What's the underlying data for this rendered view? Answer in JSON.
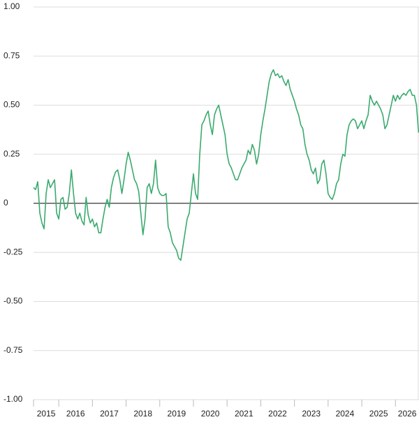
{
  "chart_data": {
    "type": "line",
    "x": [
      2015.25,
      2015.3125,
      2015.375,
      2015.4375,
      2015.5,
      2015.5625,
      2015.625,
      2015.6875,
      2015.75,
      2015.8125,
      2015.875,
      2015.9375,
      2016.0,
      2016.0625,
      2016.125,
      2016.1875,
      2016.25,
      2016.3125,
      2016.375,
      2016.4375,
      2016.5,
      2016.5625,
      2016.625,
      2016.6875,
      2016.75,
      2016.8125,
      2016.875,
      2016.9375,
      2017.0,
      2017.0625,
      2017.125,
      2017.1875,
      2017.25,
      2017.3125,
      2017.375,
      2017.4375,
      2017.5,
      2017.5625,
      2017.625,
      2017.6875,
      2017.75,
      2017.8125,
      2017.875,
      2017.9375,
      2018.0,
      2018.0625,
      2018.125,
      2018.1875,
      2018.25,
      2018.3125,
      2018.375,
      2018.4375,
      2018.5,
      2018.5625,
      2018.625,
      2018.6875,
      2018.75,
      2018.8125,
      2018.875,
      2018.9375,
      2019.0,
      2019.0625,
      2019.125,
      2019.1875,
      2019.25,
      2019.3125,
      2019.375,
      2019.4375,
      2019.5,
      2019.5625,
      2019.625,
      2019.6875,
      2019.75,
      2019.8125,
      2019.875,
      2019.9375,
      2020.0,
      2020.0625,
      2020.125,
      2020.1875,
      2020.25,
      2020.3125,
      2020.375,
      2020.4375,
      2020.5,
      2020.5625,
      2020.625,
      2020.6875,
      2020.75,
      2020.8125,
      2020.875,
      2020.9375,
      2021.0,
      2021.0625,
      2021.125,
      2021.1875,
      2021.25,
      2021.3125,
      2021.375,
      2021.4375,
      2021.5,
      2021.5625,
      2021.625,
      2021.6875,
      2021.75,
      2021.8125,
      2021.875,
      2021.9375,
      2022.0,
      2022.0625,
      2022.125,
      2022.1875,
      2022.25,
      2022.3125,
      2022.375,
      2022.4375,
      2022.5,
      2022.5625,
      2022.625,
      2022.6875,
      2022.75,
      2022.8125,
      2022.875,
      2022.9375,
      2023.0,
      2023.0625,
      2023.125,
      2023.1875,
      2023.25,
      2023.3125,
      2023.375,
      2023.4375,
      2023.5,
      2023.5625,
      2023.625,
      2023.6875,
      2023.75,
      2023.8125,
      2023.875,
      2023.9375,
      2024.0,
      2024.0625,
      2024.125,
      2024.1875,
      2024.25,
      2024.3125,
      2024.375,
      2024.4375,
      2024.5,
      2024.5625,
      2024.625,
      2024.6875,
      2024.75,
      2024.8125,
      2024.875,
      2024.9375,
      2025.0,
      2025.0625,
      2025.125,
      2025.1875,
      2025.25,
      2025.3125,
      2025.375,
      2025.4375,
      2025.5,
      2025.5625,
      2025.625,
      2025.6875,
      2025.75,
      2025.8125,
      2025.875,
      2025.9375,
      2026.0,
      2026.0625,
      2026.125,
      2026.1875,
      2026.25,
      2026.3125,
      2026.375,
      2026.4375,
      2026.5,
      2026.5625,
      2026.625,
      2026.6875
    ],
    "series": [
      {
        "color": "#3aaa6e",
        "values": [
          0.08,
          0.07,
          0.11,
          -0.05,
          -0.1,
          -0.13,
          0.05,
          0.12,
          0.08,
          0.1,
          0.12,
          -0.05,
          -0.08,
          0.02,
          0.03,
          -0.03,
          -0.02,
          0.05,
          0.17,
          0.05,
          -0.05,
          -0.08,
          -0.05,
          -0.09,
          -0.11,
          0.03,
          -0.06,
          -0.1,
          -0.08,
          -0.12,
          -0.1,
          -0.15,
          -0.15,
          -0.08,
          -0.02,
          0.02,
          -0.02,
          0.08,
          0.13,
          0.16,
          0.17,
          0.12,
          0.05,
          0.12,
          0.2,
          0.26,
          0.22,
          0.17,
          0.12,
          0.1,
          0.06,
          -0.05,
          -0.16,
          -0.08,
          0.08,
          0.1,
          0.05,
          0.1,
          0.22,
          0.08,
          0.05,
          0.04,
          0.04,
          0.05,
          -0.12,
          -0.15,
          -0.2,
          -0.22,
          -0.24,
          -0.28,
          -0.29,
          -0.22,
          -0.15,
          -0.08,
          -0.05,
          0.05,
          0.15,
          0.05,
          0.02,
          0.25,
          0.4,
          0.42,
          0.45,
          0.47,
          0.4,
          0.35,
          0.45,
          0.48,
          0.5,
          0.45,
          0.4,
          0.35,
          0.25,
          0.2,
          0.18,
          0.15,
          0.12,
          0.12,
          0.15,
          0.18,
          0.2,
          0.22,
          0.27,
          0.25,
          0.3,
          0.27,
          0.2,
          0.25,
          0.35,
          0.42,
          0.48,
          0.55,
          0.62,
          0.66,
          0.68,
          0.65,
          0.66,
          0.64,
          0.65,
          0.62,
          0.6,
          0.63,
          0.58,
          0.55,
          0.52,
          0.48,
          0.45,
          0.4,
          0.38,
          0.3,
          0.25,
          0.22,
          0.17,
          0.15,
          0.18,
          0.1,
          0.12,
          0.2,
          0.22,
          0.15,
          0.05,
          0.03,
          0.02,
          0.05,
          0.1,
          0.12,
          0.2,
          0.25,
          0.24,
          0.35,
          0.4,
          0.42,
          0.43,
          0.42,
          0.38,
          0.4,
          0.42,
          0.38,
          0.42,
          0.45,
          0.55,
          0.52,
          0.5,
          0.52,
          0.5,
          0.48,
          0.45,
          0.38,
          0.4,
          0.45,
          0.5,
          0.55,
          0.52,
          0.55,
          0.53,
          0.55,
          0.56,
          0.55,
          0.57,
          0.58,
          0.55,
          0.55,
          0.5,
          0.36
        ]
      }
    ],
    "xlim": [
      2015.25,
      2026.7
    ],
    "xticks": [
      2015,
      2016,
      2017,
      2018,
      2019,
      2020,
      2021,
      2022,
      2023,
      2024,
      2025,
      2026
    ],
    "ylim": [
      -1,
      1
    ],
    "yticks": [
      {
        "value": -1,
        "label": "-1.00"
      },
      {
        "value": -0.75,
        "label": "-0.75"
      },
      {
        "value": -0.5,
        "label": "-0.50"
      },
      {
        "value": -0.25,
        "label": "-0.25"
      },
      0,
      {
        "value": 0.25,
        "label": "0.25"
      },
      {
        "value": 0.5,
        "label": "0.50"
      },
      {
        "value": 0.75,
        "label": "0.75"
      },
      {
        "value": 1,
        "label": "1.00"
      }
    ],
    "grid": true
  }
}
